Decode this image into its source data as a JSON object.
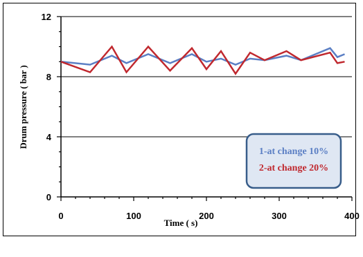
{
  "chart_data": {
    "type": "line",
    "xlabel": "Time ( s)",
    "ylabel": "Drum pressure  ( bar )",
    "xlim": [
      0,
      400
    ],
    "ylim": [
      0,
      12
    ],
    "xticks": [
      0,
      100,
      200,
      300,
      400
    ],
    "yticks": [
      0,
      4,
      8,
      12
    ],
    "grid": "horizontal",
    "legend": "bottom-right",
    "series": [
      {
        "name": "1-at change 10%",
        "color": "#5b7fc4",
        "x": [
          0,
          40,
          70,
          90,
          120,
          150,
          180,
          200,
          220,
          240,
          260,
          280,
          310,
          330,
          370,
          380,
          390
        ],
        "y": [
          9.0,
          8.8,
          9.4,
          8.9,
          9.5,
          8.9,
          9.5,
          9.0,
          9.2,
          8.8,
          9.2,
          9.1,
          9.4,
          9.1,
          9.9,
          9.3,
          9.5
        ]
      },
      {
        "name": "2-at change 20%",
        "color": "#c0282e",
        "x": [
          0,
          40,
          70,
          90,
          120,
          150,
          180,
          200,
          220,
          240,
          260,
          280,
          310,
          330,
          370,
          380,
          390
        ],
        "y": [
          9.0,
          8.3,
          10.0,
          8.3,
          10.0,
          8.4,
          9.9,
          8.5,
          9.7,
          8.2,
          9.6,
          9.1,
          9.7,
          9.1,
          9.6,
          8.9,
          9.0
        ]
      }
    ]
  }
}
